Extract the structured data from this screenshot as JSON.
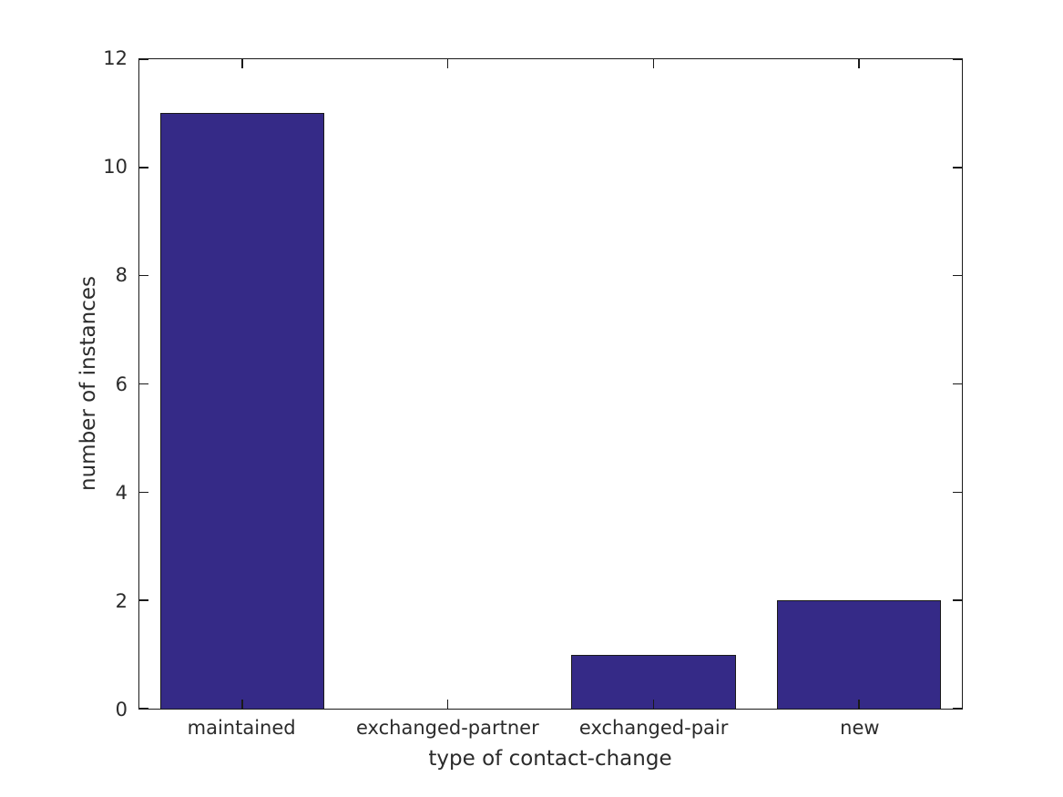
{
  "figure": {
    "background": "#ffffff"
  },
  "chart_data": {
    "type": "bar",
    "title": "",
    "categories": [
      "maintained",
      "exchanged-partner",
      "exchanged-pair",
      "new"
    ],
    "values": [
      11,
      0,
      1,
      2
    ],
    "xlabel": "type of contact-change",
    "ylabel": "number of instances",
    "ylim": [
      0,
      12
    ],
    "yticks": [
      0,
      2,
      4,
      6,
      8,
      10,
      12
    ],
    "bar_width_fraction": 0.8,
    "grid": false,
    "legend": null,
    "tick_direction": "in",
    "box": true,
    "colors": {
      "bar_fill": "#352A87",
      "bar_edge": "#1a1a1a",
      "axis": "#1a1a1a",
      "text": "#2b2b2b"
    }
  }
}
